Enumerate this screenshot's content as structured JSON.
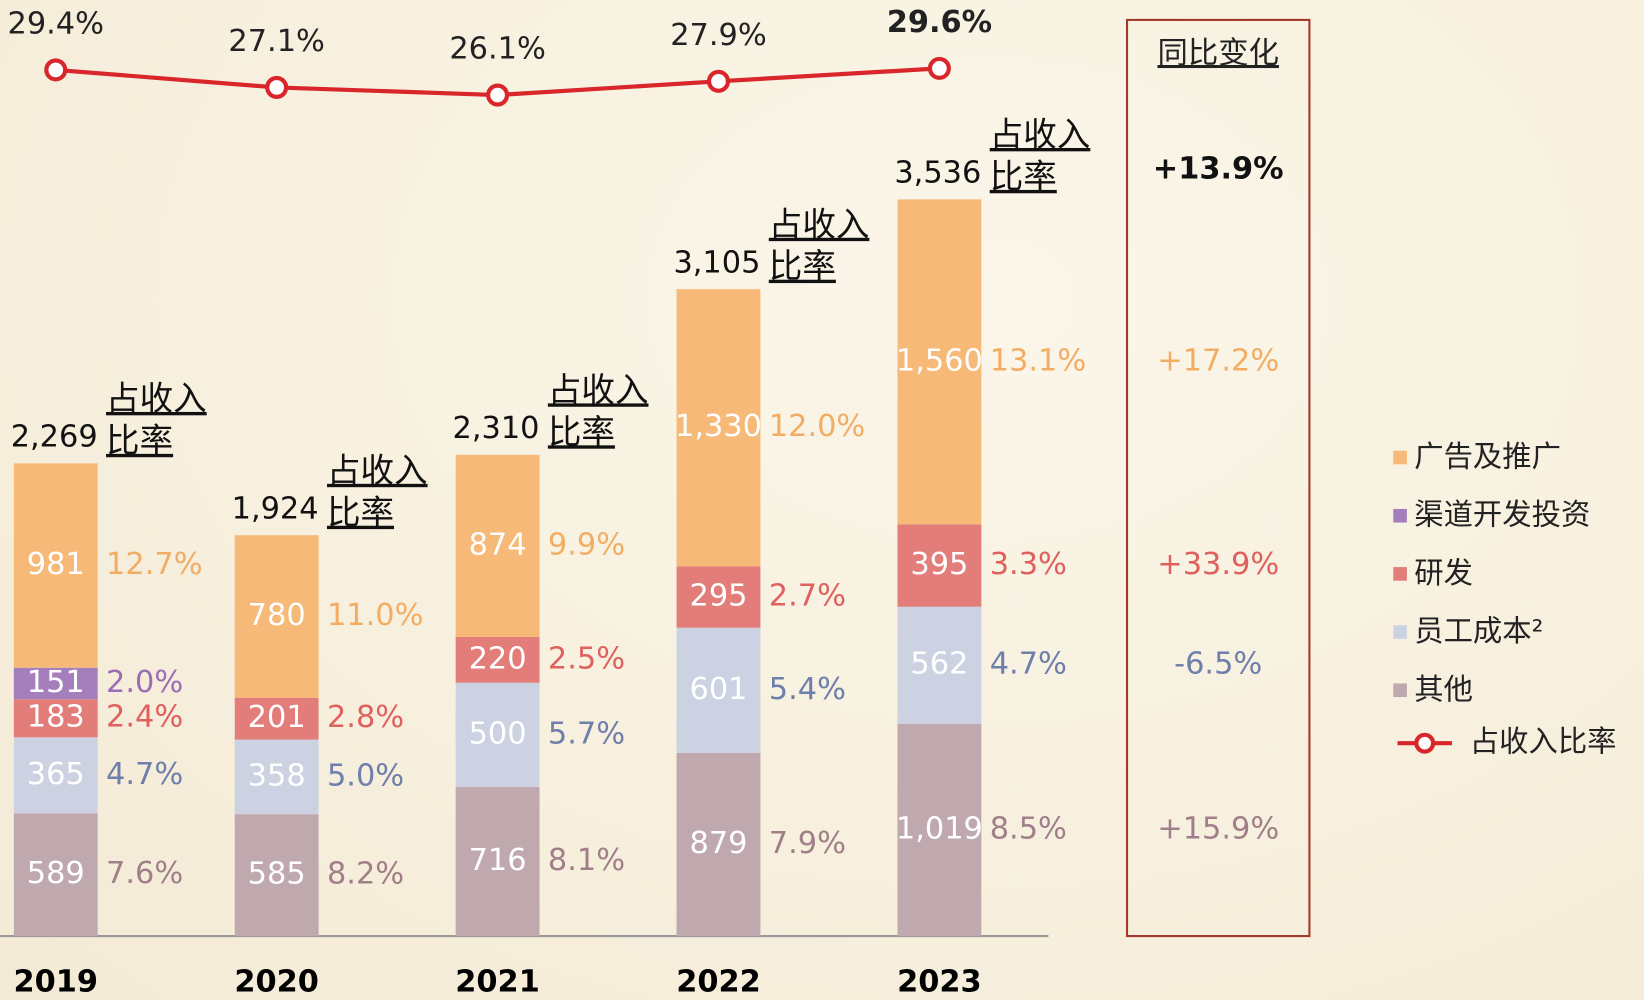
{
  "chart_data": {
    "type": "stacked-bar",
    "categories": [
      "2019",
      "2020",
      "2021",
      "2022",
      "2023"
    ],
    "ylim": [
      0,
      4000
    ],
    "series": [
      {
        "name": "广告及推广",
        "color": "#f6b978",
        "label_color": "#f3ad63",
        "values": [
          981,
          780,
          874,
          1330,
          1560
        ],
        "value_labels": [
          "981",
          "780",
          "874",
          "1,330",
          "1,560"
        ],
        "shares": [
          12.7,
          11.0,
          9.9,
          12.0,
          13.1
        ],
        "share_labels": [
          "12.7%",
          "11.0%",
          "9.9%",
          "12.0%",
          "13.1%"
        ]
      },
      {
        "name": "渠道开发投资",
        "color": "#a57fbc",
        "label_color": "#9b6db5",
        "values": [
          151,
          null,
          null,
          null,
          null
        ],
        "value_labels": [
          "151",
          null,
          null,
          null,
          null
        ],
        "shares": [
          2.0,
          null,
          null,
          null,
          null
        ],
        "share_labels": [
          "2.0%",
          null,
          null,
          null,
          null
        ]
      },
      {
        "name": "研发",
        "color": "#e27d7a",
        "label_color": "#e0605e",
        "values": [
          183,
          201,
          220,
          295,
          395
        ],
        "value_labels": [
          "183",
          "201",
          "220",
          "295",
          "395"
        ],
        "shares": [
          2.4,
          2.8,
          2.5,
          2.7,
          3.3
        ],
        "share_labels": [
          "2.4%",
          "2.8%",
          "2.5%",
          "2.7%",
          "3.3%"
        ]
      },
      {
        "name": "员工成本²",
        "color": "#cdd2e2",
        "label_color": "#6f7fac",
        "values": [
          365,
          358,
          500,
          601,
          562
        ],
        "value_labels": [
          "365",
          "358",
          "500",
          "601",
          "562"
        ],
        "shares": [
          4.7,
          5.0,
          5.7,
          5.4,
          4.7
        ],
        "share_labels": [
          "4.7%",
          "5.0%",
          "5.7%",
          "5.4%",
          "4.7%"
        ]
      },
      {
        "name": "其他",
        "color": "#bfa8ae",
        "label_color": "#a07f89",
        "values": [
          589,
          585,
          716,
          879,
          1019
        ],
        "value_labels": [
          "589",
          "585",
          "716",
          "879",
          "1,019"
        ],
        "shares": [
          7.6,
          8.2,
          8.1,
          7.9,
          8.5
        ],
        "share_labels": [
          "7.6%",
          "8.2%",
          "8.1%",
          "7.9%",
          "8.5%"
        ]
      }
    ],
    "totals": [
      2269,
      1924,
      2310,
      3105,
      3536
    ],
    "total_labels": [
      "2,269",
      "1,924",
      "2,310",
      "3,105",
      "3,536"
    ],
    "total_annotation": [
      "占收入",
      "比率"
    ],
    "line": {
      "name": "占收入比率",
      "color": "#d9262b",
      "axis": "y2",
      "values": [
        29.4,
        27.1,
        26.1,
        27.9,
        29.6
      ],
      "value_labels": [
        "29.4%",
        "27.1%",
        "26.1%",
        "27.9%",
        "29.6%"
      ]
    },
    "y2lim": [
      20,
      35
    ],
    "yoy": {
      "title": "同比变化",
      "values": [
        13.9,
        17.2,
        33.9,
        -6.5,
        15.9
      ],
      "labels": [
        "+13.9%",
        "+17.2%",
        "+33.9%",
        "-6.5%",
        "+15.9%"
      ]
    }
  }
}
